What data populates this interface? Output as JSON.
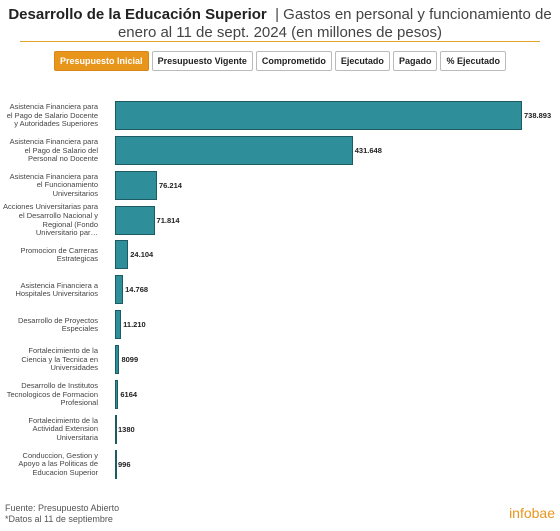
{
  "header": {
    "title": "Desarrollo de la Educación Superior",
    "subtitle": "| Gastos en personal y funcionamiento de enero al 11 de sept. 2024 (en millones de pesos)"
  },
  "tabs": [
    "Presupuesto Inicial",
    "Presupuesto Vigente",
    "Comprometido",
    "Ejecutado",
    "Pagado",
    "% Ejecutado"
  ],
  "active_tab": 0,
  "chart_data": {
    "type": "bar",
    "orientation": "horizontal",
    "color": "#2e8f9a",
    "categories": [
      "Asistencia Financiera para el Pago de Salario Docente y Autoridades Superiores",
      "Asistencia Financiera para el Pago de Salario del Personal no Docente",
      "Asistencia Financiera para el Funcionamiento Universitarios",
      "Acciones Universitarias para el Desarrollo Nacional y Regional (Fondo Universitario par…",
      "Promocion de Carreras Estrategicas",
      "Asistencia Financiera a Hospitales Universitarios",
      "Desarrollo de Proyectos Especiales",
      "Fortalecimiento de la Ciencia y la Tecnica en Universidades",
      "Desarrollo de Institutos Tecnologicos de Formacion Profesional",
      "Fortalecimiento de la Actividad Extension Universitaria",
      "Conduccion, Gestion y Apoyo a las Politicas de Educacion Superior"
    ],
    "values": [
      738893,
      431648,
      76214,
      71814,
      24104,
      14768,
      11210,
      8099,
      6164,
      1380,
      996
    ],
    "value_labels": [
      "738.893",
      "431.648",
      "76.214",
      "71.814",
      "24.104",
      "14.768",
      "11.210",
      "8099",
      "6164",
      "1380",
      "996"
    ]
  },
  "footer": {
    "source": "Fuente: Presupuesto Abierto",
    "note": "*Datos al 11 de septiembre",
    "brand": "infobae"
  }
}
